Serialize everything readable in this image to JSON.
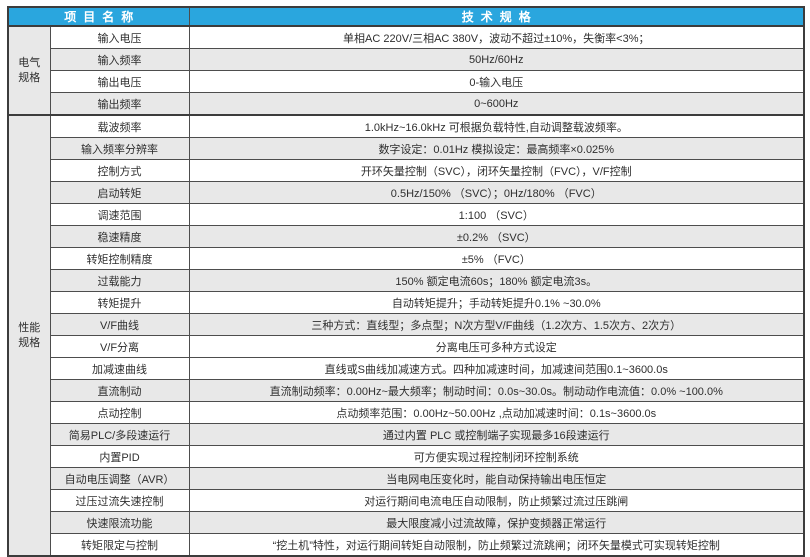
{
  "table": {
    "header": {
      "col_item": "项目名称",
      "col_spec": "技术规格"
    },
    "colors": {
      "header_bg": "#2aa6de",
      "header_text": "#ffffff",
      "shaded_row_bg": "#e8e8e8",
      "border": "#4d4d4d",
      "text": "#2e2e2e"
    },
    "sections": [
      {
        "name": "电气规格",
        "rows": [
          {
            "label": "输入电压",
            "value": "单相AC 220V/三相AC 380V，波动不超过±10%，失衡率<3%；",
            "shaded": false
          },
          {
            "label": "输入频率",
            "value": "50Hz/60Hz",
            "shaded": true
          },
          {
            "label": "输出电压",
            "value": "0-输入电压",
            "shaded": false
          },
          {
            "label": "输出频率",
            "value": "0~600Hz",
            "shaded": true
          }
        ]
      },
      {
        "name": "性能规格",
        "rows": [
          {
            "label": "载波频率",
            "value": "1.0kHz~16.0kHz 可根据负载特性,自动调整载波频率。",
            "shaded": false
          },
          {
            "label": "输入频率分辨率",
            "value": "数字设定：0.01Hz 模拟设定：最高频率×0.025%",
            "shaded": true
          },
          {
            "label": "控制方式",
            "value": "开环矢量控制（SVC），闭环矢量控制（FVC），V/F控制",
            "shaded": false
          },
          {
            "label": "启动转矩",
            "value": "0.5Hz/150% （SVC）；0Hz/180% （FVC）",
            "shaded": true
          },
          {
            "label": "调速范围",
            "value": "1:100 （SVC）",
            "shaded": false
          },
          {
            "label": "稳速精度",
            "value": "±0.2% （SVC）",
            "shaded": true
          },
          {
            "label": "转矩控制精度",
            "value": "±5% （FVC）",
            "shaded": false
          },
          {
            "label": "过载能力",
            "value": "150% 额定电流60s；180% 额定电流3s。",
            "shaded": true
          },
          {
            "label": "转矩提升",
            "value": "自动转矩提升；手动转矩提升0.1% ~30.0%",
            "shaded": false
          },
          {
            "label": "V/F曲线",
            "value": "三种方式：直线型；多点型；N次方型V/F曲线（1.2次方、1.5次方、2次方）",
            "shaded": true
          },
          {
            "label": "V/F分离",
            "value": "分离电压可多种方式设定",
            "shaded": false
          },
          {
            "label": "加减速曲线",
            "value": "直线或S曲线加减速方式。四种加减速时间，加减速间范围0.1~3600.0s",
            "shaded": false
          },
          {
            "label": "直流制动",
            "value": "直流制动频率：0.00Hz~最大频率；制动时间：0.0s~30.0s。制动动作电流值：0.0% ~100.0%",
            "shaded": true
          },
          {
            "label": "点动控制",
            "value": "点动频率范围：0.00Hz~50.00Hz ,点动加减速时间：0.1s~3600.0s",
            "shaded": false
          },
          {
            "label": "简易PLC/多段速运行",
            "value": "通过内置 PLC 或控制端子实现最多16段速运行",
            "shaded": true
          },
          {
            "label": "内置PID",
            "value": "可方便实现过程控制闭环控制系统",
            "shaded": false
          },
          {
            "label": "自动电压调整（AVR）",
            "value": "当电网电压变化时，能自动保持输出电压恒定",
            "shaded": true
          },
          {
            "label": "过压过流失速控制",
            "value": "对运行期间电流电压自动限制，防止频繁过流过压跳闸",
            "shaded": false
          },
          {
            "label": "快速限流功能",
            "value": "最大限度减小过流故障，保护变频器正常运行",
            "shaded": true
          },
          {
            "label": "转矩限定与控制",
            "value": "“挖土机”特性，对运行期间转矩自动限制，防止频繁过流跳闸；闭环矢量模式可实现转矩控制",
            "shaded": false
          }
        ]
      }
    ]
  }
}
